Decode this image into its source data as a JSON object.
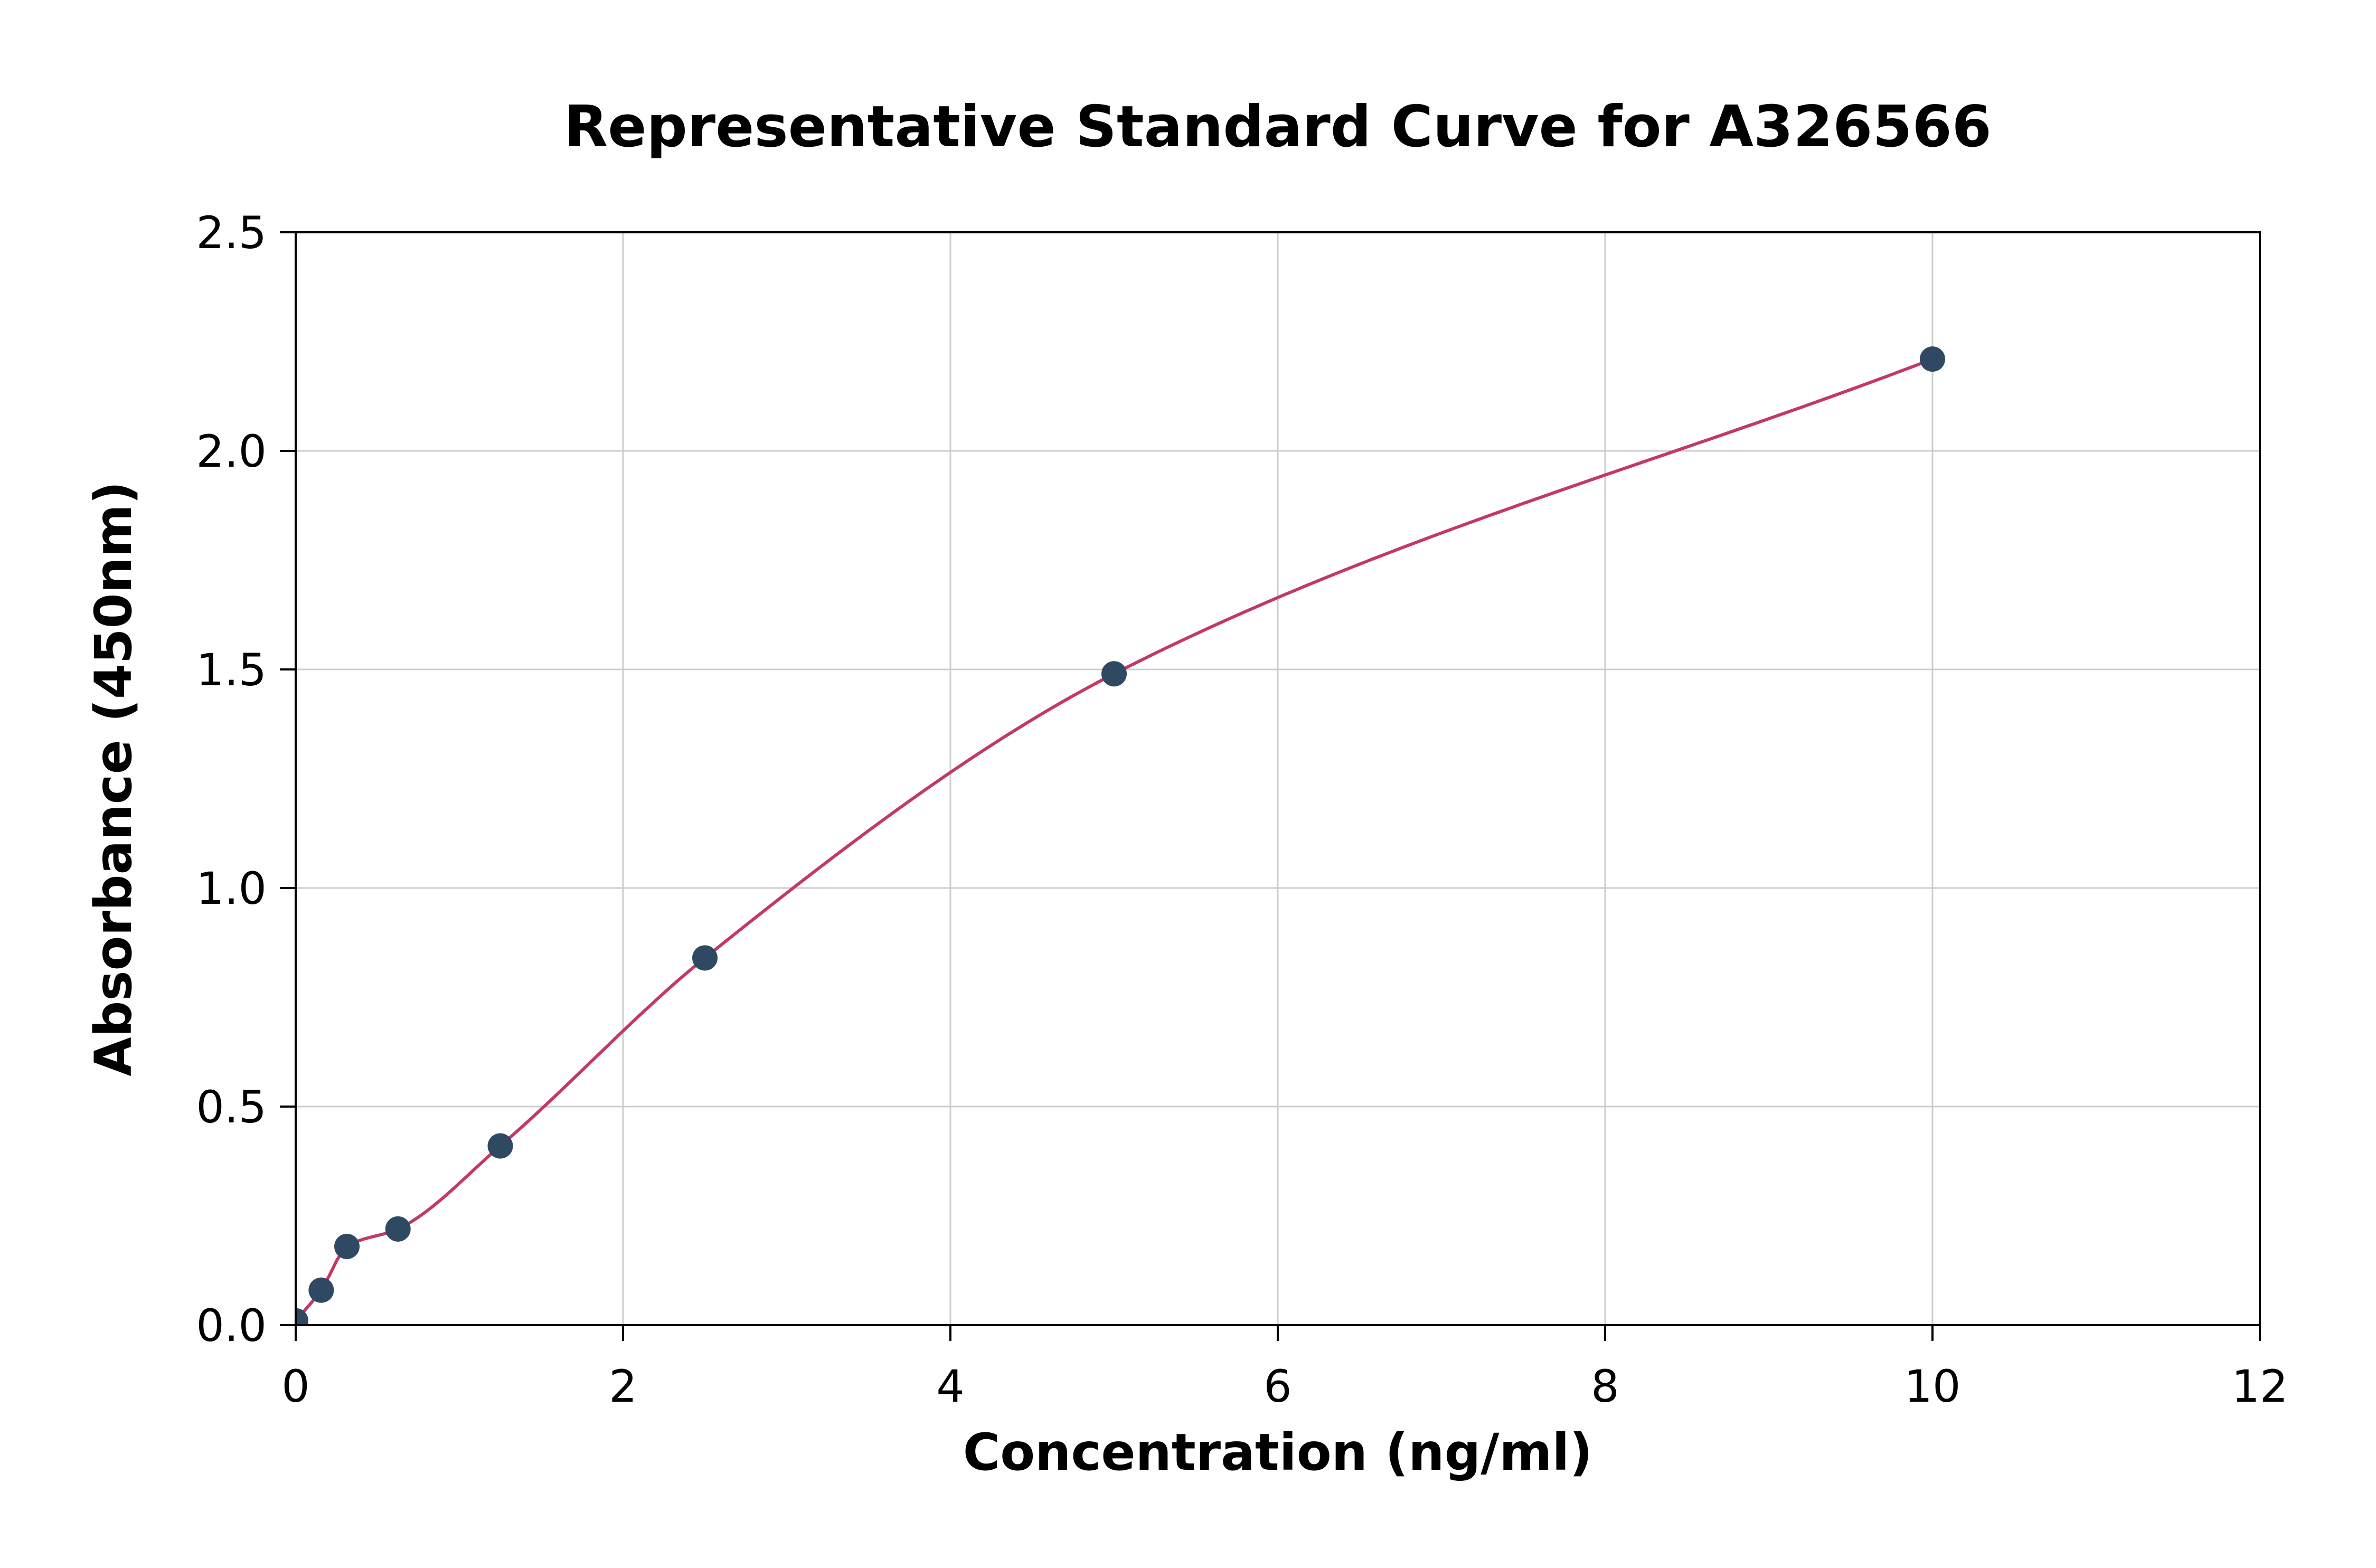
{
  "chart_data": {
    "type": "scatter",
    "title": "Representative Standard Curve for A326566",
    "xlabel": "Concentration (ng/ml)",
    "ylabel": "Absorbance (450nm)",
    "xlim": [
      0,
      12
    ],
    "ylim": [
      0,
      2.5
    ],
    "xticks": [
      0,
      2,
      4,
      6,
      8,
      10,
      12
    ],
    "xtick_labels": [
      "0",
      "2",
      "4",
      "6",
      "8",
      "10",
      "12"
    ],
    "yticks": [
      0,
      0.5,
      1.0,
      1.5,
      2.0,
      2.5
    ],
    "ytick_labels": [
      "0.0",
      "0.5",
      "1.0",
      "1.5",
      "2.0",
      "2.5"
    ],
    "grid": true,
    "legend": null,
    "points": {
      "name": "standards",
      "x": [
        0,
        0.156,
        0.313,
        0.625,
        1.25,
        2.5,
        5,
        10
      ],
      "y": [
        0.01,
        0.08,
        0.18,
        0.22,
        0.41,
        0.84,
        1.49,
        2.21
      ]
    },
    "fit_curve": {
      "x_start": 0,
      "x_end": 10,
      "through_points": true
    },
    "colors": {
      "marker": "#2f4963",
      "curve": "#c23a63",
      "grid": "#cccccc",
      "spine": "#000000",
      "background": "#ffffff"
    }
  }
}
